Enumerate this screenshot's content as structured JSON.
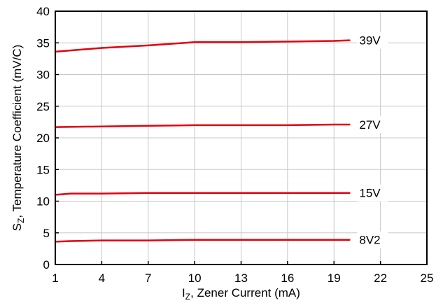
{
  "chart_data": {
    "type": "line",
    "title": "",
    "xlabel": {
      "symbol": "I",
      "subscript": "Z",
      "text": ", Zener Current (mA)"
    },
    "ylabel": {
      "symbol": "S",
      "subscript": "Z",
      "text": ", Temperature Coefficient (mV/C)"
    },
    "xlim": [
      1,
      25
    ],
    "ylim": [
      0,
      40
    ],
    "xticks": [
      1,
      4,
      7,
      10,
      13,
      16,
      19,
      22,
      25
    ],
    "yticks": [
      0,
      5,
      10,
      15,
      20,
      25,
      30,
      35,
      40
    ],
    "grid": true,
    "colors": {
      "line": "#e3000f",
      "grid": "#c8c8c8",
      "axis": "#000000"
    },
    "series": [
      {
        "name": "39V",
        "x": [
          1,
          4,
          7,
          10,
          13,
          16,
          19,
          20
        ],
        "y": [
          33.6,
          34.2,
          34.6,
          35.1,
          35.1,
          35.2,
          35.3,
          35.4
        ]
      },
      {
        "name": "27V",
        "x": [
          1,
          4,
          7,
          10,
          13,
          16,
          19,
          20
        ],
        "y": [
          21.7,
          21.8,
          21.9,
          22.0,
          22.0,
          22.0,
          22.1,
          22.1
        ]
      },
      {
        "name": "15V",
        "x": [
          1,
          2,
          4,
          7,
          10,
          13,
          16,
          19,
          20
        ],
        "y": [
          11.0,
          11.2,
          11.2,
          11.3,
          11.3,
          11.3,
          11.3,
          11.3,
          11.3
        ]
      },
      {
        "name": "8V2",
        "x": [
          1,
          2,
          4,
          7,
          10,
          13,
          16,
          19,
          20
        ],
        "y": [
          3.6,
          3.7,
          3.8,
          3.8,
          3.9,
          3.9,
          3.9,
          3.9,
          3.9
        ]
      }
    ]
  }
}
